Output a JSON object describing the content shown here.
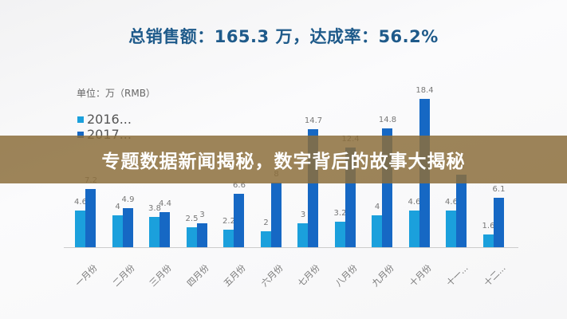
{
  "headline": "总销售额：165.3 万，达成率：56.2%",
  "banner_title": "专题数据新闻揭秘，数字背后的故事大揭秘",
  "unit_label": "单位：万（RMB）",
  "legend": [
    {
      "label": "2016...",
      "color": "#1ba0dc"
    },
    {
      "label": "2017...",
      "color": "#1668c4"
    }
  ],
  "colors": {
    "series_2016": "#1ba0dc",
    "series_2017": "#1668c4",
    "banner": "#8c6e3c",
    "headline": "#1e5a8a"
  },
  "chart_data": {
    "type": "bar",
    "title": "总销售额：165.3 万，达成率：56.2%",
    "ylabel": "单位：万（RMB）",
    "xlabel": "",
    "categories": [
      "一月份",
      "二月份",
      "三月份",
      "四月份",
      "五月份",
      "六月份",
      "七月份",
      "八月份",
      "九月份",
      "十月份",
      "十一...",
      "十二..."
    ],
    "series": [
      {
        "name": "2016...",
        "values": [
          4.6,
          4,
          3.8,
          2.5,
          2.2,
          2,
          3,
          3.2,
          4,
          4.6,
          4.6,
          1.6
        ]
      },
      {
        "name": "2017...",
        "values": [
          7.2,
          4.9,
          4.4,
          3,
          6.6,
          8,
          14.7,
          12.4,
          14.8,
          18.4,
          9,
          6.1
        ]
      }
    ],
    "ylim": [
      0,
      20
    ],
    "grid": false,
    "legend_position": "top-left"
  }
}
